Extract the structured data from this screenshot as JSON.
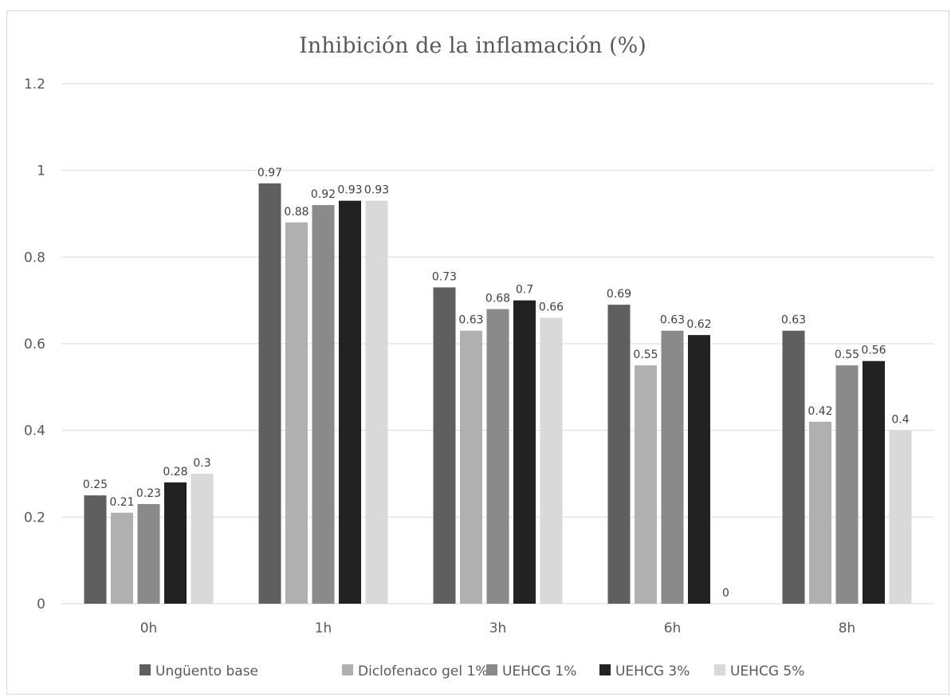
{
  "chart_data": {
    "type": "bar",
    "title": "Inhibición de la inflamación (%)",
    "xlabel": "",
    "ylabel": "",
    "categories": [
      "0h",
      "1h",
      "3h",
      "6h",
      "8h"
    ],
    "ylim": [
      0,
      1.2
    ],
    "yticks": [
      0,
      0.2,
      0.4,
      0.6,
      0.8,
      1,
      1.2
    ],
    "ytick_labels": [
      "0",
      "0.2",
      "0.4",
      "0.6",
      "0.8",
      "1",
      "1.2"
    ],
    "grid": "horizontal",
    "legend_position": "bottom",
    "series": [
      {
        "name": "Ungüento base",
        "color": "#5f5f5f",
        "values": [
          0.25,
          0.97,
          0.73,
          0.69,
          0.63
        ]
      },
      {
        "name": "Diclofenaco gel 1%",
        "color": "#b0b0b0",
        "values": [
          0.21,
          0.88,
          0.63,
          0.55,
          0.42
        ]
      },
      {
        "name": "UEHCG 1%",
        "color": "#8a8a8a",
        "values": [
          0.23,
          0.92,
          0.68,
          0.63,
          0.55
        ]
      },
      {
        "name": "UEHCG 3%",
        "color": "#222222",
        "values": [
          0.28,
          0.93,
          0.7,
          0.62,
          0.56
        ]
      },
      {
        "name": "UEHCG 5%",
        "color": "#d9d9d9",
        "values": [
          0.3,
          0.93,
          0.66,
          0,
          0.4
        ]
      }
    ],
    "data_labels": [
      [
        "0.25",
        "0.97",
        "0.73",
        "0.69",
        "0.63"
      ],
      [
        "0.21",
        "0.88",
        "0.63",
        "0.55",
        "0.42"
      ],
      [
        "0.23",
        "0.92",
        "0.68",
        "0.63",
        "0.55"
      ],
      [
        "0.28",
        "0.93",
        "0.7",
        "0.62",
        "0.56"
      ],
      [
        "0.3",
        "0.93",
        "0.66",
        "0",
        "0.4"
      ]
    ]
  }
}
